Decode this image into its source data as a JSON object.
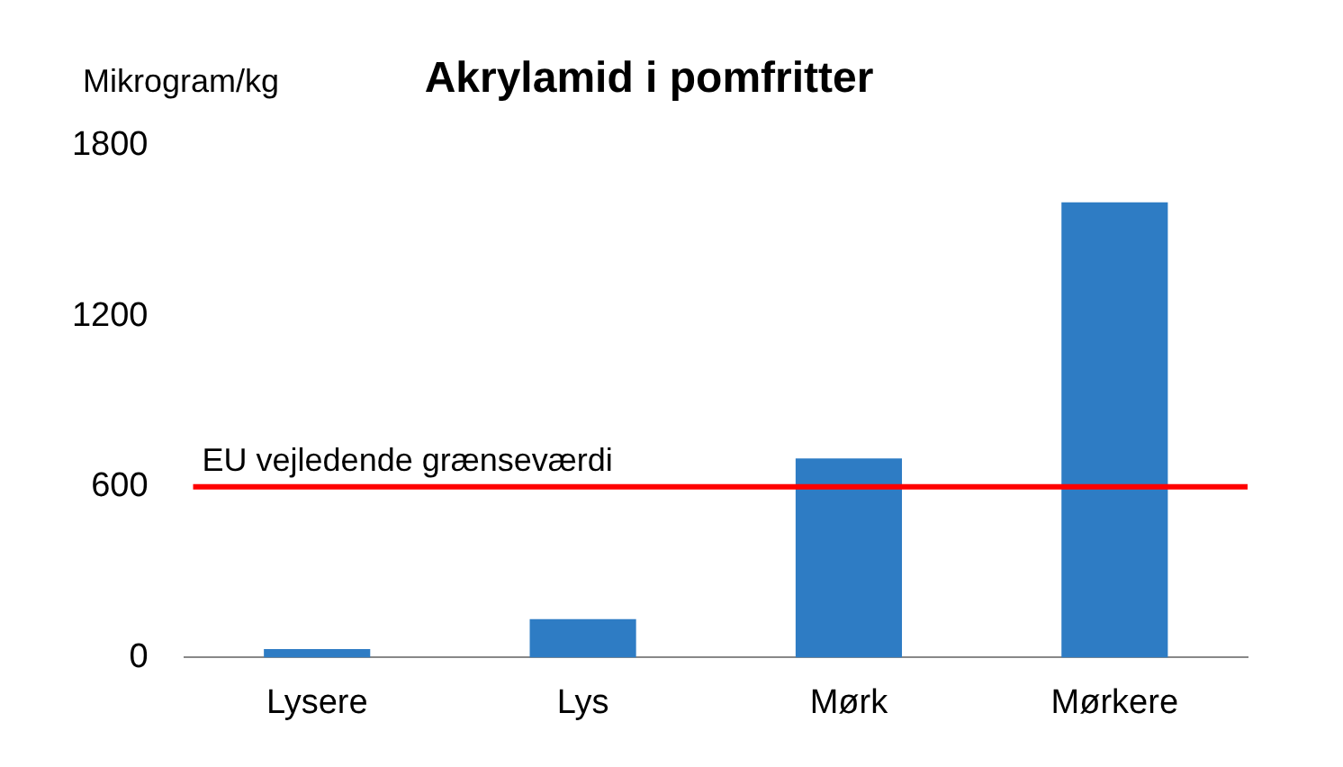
{
  "chart_data": {
    "type": "bar",
    "title": "Akrylamid i pomfritter",
    "ylabel": "Mikrogram/kg",
    "categories": [
      "Lysere",
      "Lys",
      "Mørk",
      "Mørkere"
    ],
    "values": [
      30,
      135,
      700,
      1600
    ],
    "color": "#2e7cc4",
    "ylim": [
      0,
      1800
    ],
    "yticks": [
      0,
      600,
      1200,
      1800
    ],
    "grid": false,
    "ref_lines": [
      {
        "axis": "y",
        "value": 600,
        "label": "EU vejledende grænseværdi",
        "color": "#ff0000"
      }
    ]
  }
}
